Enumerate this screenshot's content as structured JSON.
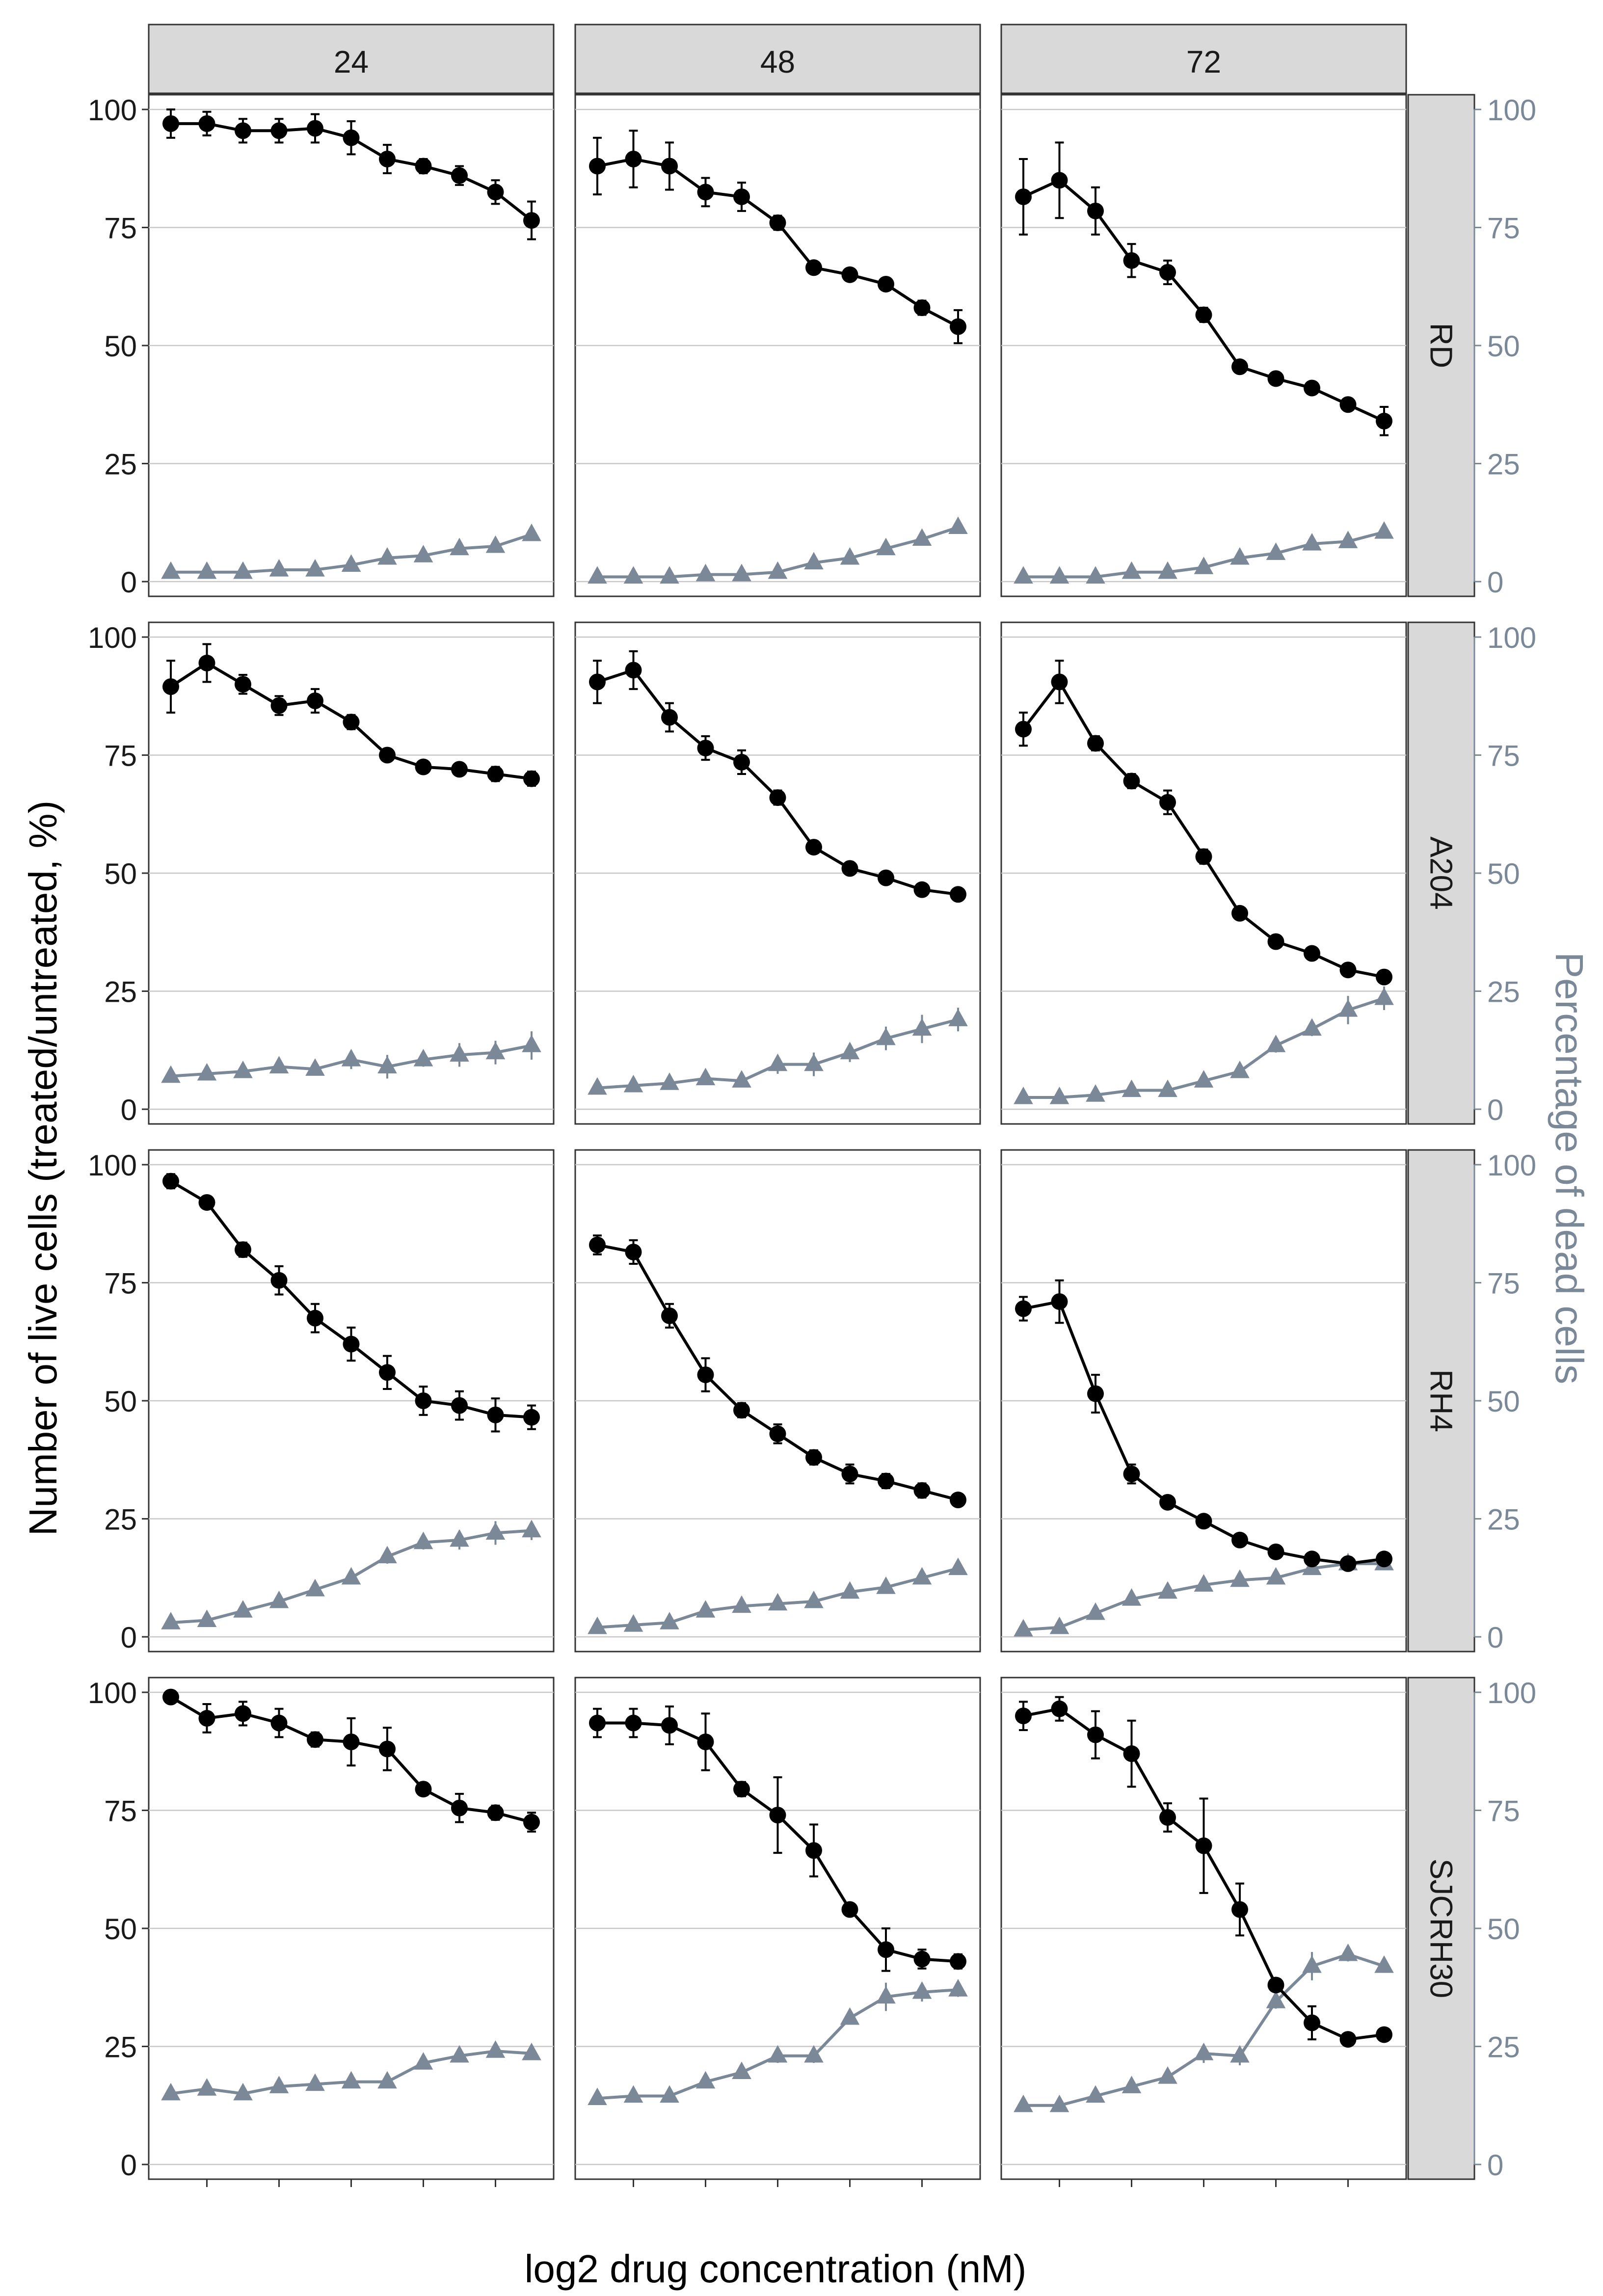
{
  "chart_data": {
    "type": "line",
    "layout": "facet grid: columns = time point (h), rows = cell line",
    "xlabel": "log2 drug concentration (nM)",
    "ylabel_left": "Number of live cells (treated/untreated, %)",
    "ylabel_right": "Percentage of dead cells",
    "ylim": [
      0,
      100
    ],
    "yticks": [
      0,
      25,
      50,
      75,
      100
    ],
    "grid": true,
    "columns": [
      "24",
      "48",
      "72"
    ],
    "rows": [
      "RD",
      "A204",
      "RH4",
      "SJCRH30"
    ],
    "series_styles": {
      "live": {
        "name": "Number of live cells",
        "marker": "circle",
        "color": "#000000"
      },
      "dead": {
        "name": "Percentage of dead cells",
        "marker": "triangle",
        "color": "#7a8898"
      }
    },
    "x": [
      1,
      2,
      3,
      4,
      5,
      6,
      7,
      8,
      9,
      10,
      11
    ],
    "panels": [
      {
        "row": "RD",
        "col": "24",
        "live": [
          97,
          97,
          95.5,
          95.5,
          96,
          94,
          89.5,
          88,
          86,
          82.5,
          76.5
        ],
        "live_err": [
          3,
          2.5,
          2.5,
          2.5,
          3,
          3.5,
          3,
          1.5,
          2,
          2.5,
          4
        ],
        "dead": [
          2,
          2,
          2,
          2.5,
          2.5,
          3.5,
          5,
          5.5,
          7,
          7.5,
          10
        ],
        "dead_err": [
          0.5,
          0.5,
          0.5,
          0.5,
          0.5,
          0.5,
          1,
          1,
          1,
          1,
          1
        ]
      },
      {
        "row": "RD",
        "col": "48",
        "live": [
          88,
          89.5,
          88,
          82.5,
          81.5,
          76,
          66.5,
          65,
          63,
          58,
          54
        ],
        "live_err": [
          6,
          6,
          5,
          3,
          3,
          1.5,
          1,
          1,
          1,
          1.5,
          3.5
        ],
        "dead": [
          1,
          1,
          1,
          1.5,
          1.5,
          2,
          4,
          5,
          7,
          9,
          11.5
        ],
        "dead_err": [
          0.5,
          0.5,
          0.5,
          0.5,
          0.5,
          0.5,
          0.5,
          1,
          1,
          1,
          1
        ]
      },
      {
        "row": "RD",
        "col": "72",
        "live": [
          81.5,
          85,
          78.5,
          68,
          65.5,
          56.5,
          45.5,
          43,
          41,
          37.5,
          34
        ],
        "live_err": [
          8,
          8,
          5,
          3.5,
          2.5,
          1.5,
          1,
          1,
          1,
          1,
          3
        ],
        "dead": [
          1,
          1,
          1,
          2,
          2,
          3,
          5,
          6,
          8,
          8.5,
          10.5
        ],
        "dead_err": [
          0.5,
          0.5,
          0.5,
          0.5,
          0.5,
          0.5,
          1,
          1,
          1,
          1,
          1
        ]
      },
      {
        "row": "A204",
        "col": "24",
        "live": [
          89.5,
          94.5,
          90,
          85.5,
          86.5,
          82,
          75,
          72.5,
          72,
          71,
          70
        ],
        "live_err": [
          5.5,
          4,
          2,
          2,
          2.5,
          1.5,
          1,
          1,
          1,
          1.5,
          1.5
        ],
        "dead": [
          7,
          7.5,
          8,
          9,
          8.5,
          10.5,
          9,
          10.5,
          11.5,
          12,
          13.5
        ],
        "dead_err": [
          1,
          1,
          1,
          1,
          1,
          2,
          2.5,
          1.5,
          2.5,
          2.5,
          3
        ]
      },
      {
        "row": "A204",
        "col": "48",
        "live": [
          90.5,
          93,
          83,
          76.5,
          73.5,
          66,
          55.5,
          51,
          49,
          46.5,
          45.5
        ],
        "live_err": [
          4.5,
          4,
          3,
          2.5,
          2.5,
          1.5,
          1,
          1,
          1,
          1,
          1
        ],
        "dead": [
          4.5,
          5,
          5.5,
          6.5,
          6,
          9.5,
          9.5,
          12,
          15,
          17,
          19
        ],
        "dead_err": [
          1,
          1,
          1,
          1,
          1,
          2,
          2.5,
          2,
          2.5,
          3,
          2.5
        ]
      },
      {
        "row": "A204",
        "col": "72",
        "live": [
          80.5,
          90.5,
          77.5,
          69.5,
          65,
          53.5,
          41.5,
          35.5,
          33,
          29.5,
          28
        ],
        "live_err": [
          3.5,
          4.5,
          1.5,
          1.5,
          2.5,
          1.5,
          1,
          1,
          1,
          1,
          1
        ],
        "dead": [
          2.5,
          2.5,
          3,
          4,
          4,
          6,
          8,
          13.5,
          17,
          21,
          23.5
        ],
        "dead_err": [
          1,
          1,
          1,
          1,
          1,
          1,
          1,
          1.5,
          1.5,
          3,
          2.5
        ]
      },
      {
        "row": "RH4",
        "col": "24",
        "live": [
          96.5,
          92,
          82,
          75.5,
          67.5,
          62,
          56,
          50,
          49,
          47,
          46.5
        ],
        "live_err": [
          1.5,
          1,
          1.5,
          3,
          3,
          3.5,
          3.5,
          3,
          3,
          3.5,
          2.5
        ],
        "dead": [
          3,
          3.5,
          5.5,
          7.5,
          10,
          12.5,
          17,
          20,
          20.5,
          22,
          22.5
        ],
        "dead_err": [
          0.5,
          1,
          1,
          1,
          1,
          1,
          1.5,
          1.5,
          2,
          2.5,
          2
        ]
      },
      {
        "row": "RH4",
        "col": "48",
        "live": [
          83,
          81.5,
          68,
          55.5,
          48,
          43,
          38,
          34.5,
          33,
          31,
          29
        ],
        "live_err": [
          2,
          2.5,
          2.5,
          3.5,
          1.5,
          2,
          1.5,
          2,
          1.5,
          1.5,
          1
        ],
        "dead": [
          2,
          2.5,
          3,
          5.5,
          6.5,
          7,
          7.5,
          9.5,
          10.5,
          12.5,
          14.5
        ],
        "dead_err": [
          0.5,
          0.5,
          0.5,
          0.5,
          0.5,
          0.5,
          0.5,
          0.5,
          0.5,
          1,
          1
        ]
      },
      {
        "row": "RH4",
        "col": "72",
        "live": [
          69.5,
          71,
          51.5,
          34.5,
          28.5,
          24.5,
          20.5,
          18,
          16.5,
          15.5,
          16.5
        ],
        "live_err": [
          2.5,
          4.5,
          4,
          2,
          1,
          1,
          1,
          1,
          1,
          1,
          1
        ],
        "dead": [
          1.5,
          2,
          5,
          8,
          9.5,
          11,
          12,
          12.5,
          14.5,
          15.5,
          15.5
        ],
        "dead_err": [
          0.5,
          0.5,
          0.5,
          0.5,
          0.5,
          0.5,
          0.5,
          0.5,
          0.5,
          0.5,
          1
        ]
      },
      {
        "row": "SJCRH30",
        "col": "24",
        "live": [
          99,
          94.5,
          95.5,
          93.5,
          90,
          89.5,
          88,
          79.5,
          75.5,
          74.5,
          72.5
        ],
        "live_err": [
          1,
          3,
          2.5,
          3,
          1.5,
          5,
          4.5,
          1,
          3,
          1.5,
          2
        ],
        "dead": [
          15,
          16,
          15,
          16.5,
          17,
          17.5,
          17.5,
          21.5,
          23,
          24,
          23.5
        ],
        "dead_err": [
          1,
          1,
          1,
          1,
          1,
          1,
          1,
          1,
          1,
          1,
          1
        ]
      },
      {
        "row": "SJCRH30",
        "col": "48",
        "live": [
          93.5,
          93.5,
          93,
          89.5,
          79.5,
          74,
          66.5,
          54,
          45.5,
          43.5,
          43
        ],
        "live_err": [
          3,
          3,
          4,
          6,
          1.5,
          8,
          5.5,
          1,
          4.5,
          2,
          1.5
        ],
        "dead": [
          14,
          14.5,
          14.5,
          17.5,
          19.5,
          23,
          23,
          31,
          35.5,
          36.5,
          37
        ],
        "dead_err": [
          1,
          1,
          1,
          1,
          1,
          1.5,
          1.5,
          1,
          3,
          2,
          1.5
        ]
      },
      {
        "row": "SJCRH30",
        "col": "72",
        "live": [
          95,
          96.5,
          91,
          87,
          73.5,
          67.5,
          54,
          38,
          30,
          26.5,
          27.5
        ],
        "live_err": [
          3,
          2.5,
          5,
          7,
          3,
          10,
          5.5,
          1,
          3.5,
          1,
          1
        ],
        "dead": [
          12.5,
          12.5,
          14.5,
          16.5,
          18.5,
          23.5,
          23,
          34.5,
          42,
          44.5,
          42
        ],
        "dead_err": [
          1,
          1,
          1,
          1,
          1,
          2,
          2,
          1.5,
          3,
          1.5,
          1
        ]
      }
    ]
  }
}
